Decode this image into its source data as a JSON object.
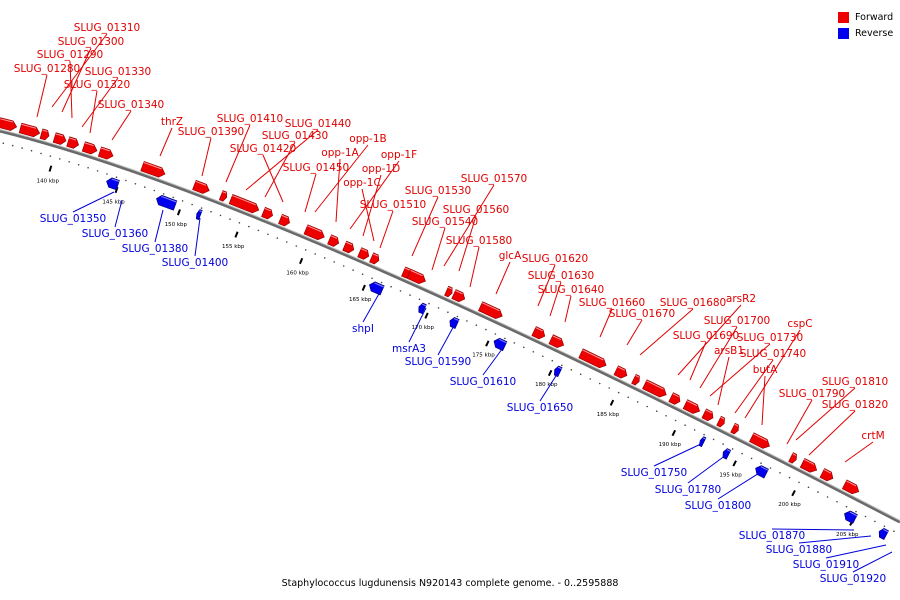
{
  "caption": "Staphylococcus lugdunensis N920143 complete genome. - 0..2595888",
  "legend": {
    "forward_label": "Forward",
    "reverse_label": "Reverse",
    "forward_color": "#ee0000",
    "reverse_color": "#0000ee"
  },
  "ticks": [
    "140 kbp",
    "145 kbp",
    "150 kbp",
    "155 kbp",
    "160 kbp",
    "165 kbp",
    "170 kbp",
    "175 kbp",
    "180 kbp",
    "185 kbp",
    "190 kbp",
    "195 kbp",
    "200 kbp",
    "205 kbp"
  ],
  "forward_genes": [
    "SLUG_01310",
    "SLUG_01300",
    "SLUG_01290",
    "SLUG_01280",
    "SLUG_01330",
    "SLUG_01320",
    "SLUG_01340",
    "thrZ",
    "SLUG_01390",
    "SLUG_01410",
    "SLUG_01440",
    "SLUG_01430",
    "SLUG_01420",
    "opp-1B",
    "opp-1A",
    "opp-1F",
    "SLUG_01450",
    "opp-1D",
    "opp-1C",
    "SLUG_01530",
    "SLUG_01570",
    "SLUG_01510",
    "SLUG_01560",
    "SLUG_01540",
    "SLUG_01580",
    "glcA",
    "SLUG_01620",
    "SLUG_01630",
    "SLUG_01640",
    "SLUG_01660",
    "SLUG_01680",
    "arsR2",
    "SLUG_01670",
    "SLUG_01700",
    "SLUG_01690",
    "SLUG_01730",
    "cspC",
    "arsB1",
    "SLUG_01740",
    "butA",
    "SLUG_01810",
    "SLUG_01790",
    "SLUG_01820",
    "crtM"
  ],
  "reverse_genes": [
    "SLUG_01350",
    "SLUG_01360",
    "SLUG_01380",
    "SLUG_01400",
    "shpI",
    "msrA3",
    "SLUG_01590",
    "SLUG_01610",
    "SLUG_01650",
    "SLUG_01750",
    "SLUG_01780",
    "SLUG_01800",
    "SLUG_01870",
    "SLUG_01880",
    "SLUG_01910",
    "SLUG_01920"
  ]
}
